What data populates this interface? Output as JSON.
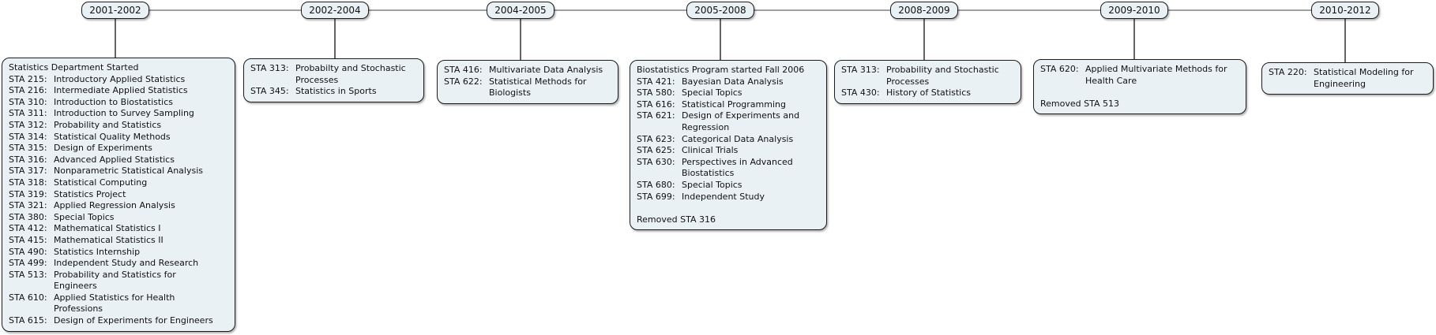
{
  "page": {
    "background": "#ffffff"
  },
  "style_colors": {
    "box_fill": "#eaf1f5",
    "box_border": "#1c1c1c",
    "spine": "#808080",
    "drop": "#222222",
    "text": "#111111"
  },
  "timeline": {
    "eras": [
      {
        "year": "2001-2002",
        "entries": [
          {
            "code": "",
            "title": "Statistics Department Started"
          },
          {
            "code": "STA 215:",
            "title": "Introductory Applied Statistics"
          },
          {
            "code": "STA 216:",
            "title": "Intermediate Applied Statistics"
          },
          {
            "code": "STA 310:",
            "title": "Introduction to Biostatistics"
          },
          {
            "code": "STA 311:",
            "title": "Introduction to Survey Sampling"
          },
          {
            "code": "STA 312:",
            "title": "Probability and Statistics"
          },
          {
            "code": "STA 314:",
            "title": "Statistical Quality Methods"
          },
          {
            "code": "STA 315:",
            "title": "Design of Experiments"
          },
          {
            "code": "STA 316:",
            "title": "Advanced Applied Statistics"
          },
          {
            "code": "STA 317:",
            "title": "Nonparametric Statistical Analysis"
          },
          {
            "code": "STA 318:",
            "title": "Statistical Computing"
          },
          {
            "code": "STA 319:",
            "title": "Statistics Project"
          },
          {
            "code": "STA 321:",
            "title": "Applied Regression Analysis"
          },
          {
            "code": "STA 380:",
            "title": "Special Topics"
          },
          {
            "code": "STA 412:",
            "title": "Mathematical Statistics I"
          },
          {
            "code": "STA 415:",
            "title": "Mathematical Statistics II"
          },
          {
            "code": "STA 490:",
            "title": "Statistics Internship"
          },
          {
            "code": "STA 499:",
            "title": "Independent Study and Research"
          },
          {
            "code": "STA 513:",
            "title": "Probability and Statistics for",
            "wrap": [
              "Engineers"
            ]
          },
          {
            "code": "STA 610:",
            "title": "Applied Statistics for Health",
            "wrap": [
              "Professions"
            ]
          },
          {
            "code": "STA 615:",
            "title": "Design of Experiments for Engineers"
          }
        ]
      },
      {
        "year": "2002-2004",
        "entries": [
          {
            "code": "STA 313:",
            "title": "Probabilty and Stochastic",
            "wrap": [
              "Processes"
            ]
          },
          {
            "code": "STA 345:",
            "title": "Statistics in Sports"
          }
        ]
      },
      {
        "year": "2004-2005",
        "entries": [
          {
            "code": "STA 416:",
            "title": "Multivariate Data Analysis"
          },
          {
            "code": "STA 622:",
            "title": "Statistical Methods for",
            "wrap": [
              "Biologists"
            ]
          }
        ]
      },
      {
        "year": "2005-2008",
        "entries": [
          {
            "code": "",
            "title": "Biostatistics Program started Fall 2006"
          },
          {
            "code": "STA 421:",
            "title": "Bayesian Data Analysis"
          },
          {
            "code": "STA 580:",
            "title": "Special Topics"
          },
          {
            "code": "STA 616:",
            "title": "Statistical Programming"
          },
          {
            "code": "STA 621:",
            "title": "Design of Experiments and",
            "wrap": [
              "Regression"
            ]
          },
          {
            "code": "STA 623:",
            "title": "Categorical Data Analysis"
          },
          {
            "code": "STA 625:",
            "title": "Clinical Trials"
          },
          {
            "code": "STA 630:",
            "title": "Perspectives in Advanced",
            "wrap": [
              "Biostatistics"
            ]
          },
          {
            "code": "STA 680:",
            "title": "Special Topics"
          },
          {
            "code": "STA 699:",
            "title": "Independent Study"
          },
          {
            "code": "",
            "title": ""
          },
          {
            "code": "",
            "title": "Removed STA 316"
          }
        ]
      },
      {
        "year": "2008-2009",
        "entries": [
          {
            "code": "STA 313:",
            "title": "Probability and Stochastic",
            "wrap": [
              "Processes"
            ]
          },
          {
            "code": "STA 430:",
            "title": "History of Statistics"
          }
        ]
      },
      {
        "year": "2009-2010",
        "entries": [
          {
            "code": "STA 620:",
            "title": "Applied Multivariate Methods for",
            "wrap": [
              "Health Care"
            ]
          },
          {
            "code": "",
            "title": ""
          },
          {
            "code": "",
            "title": "Removed STA 513"
          }
        ]
      },
      {
        "year": "2010-2012",
        "entries": [
          {
            "code": "STA 220:",
            "title": "Statistical Modeling for",
            "wrap": [
              "Engineering"
            ]
          }
        ]
      }
    ]
  }
}
